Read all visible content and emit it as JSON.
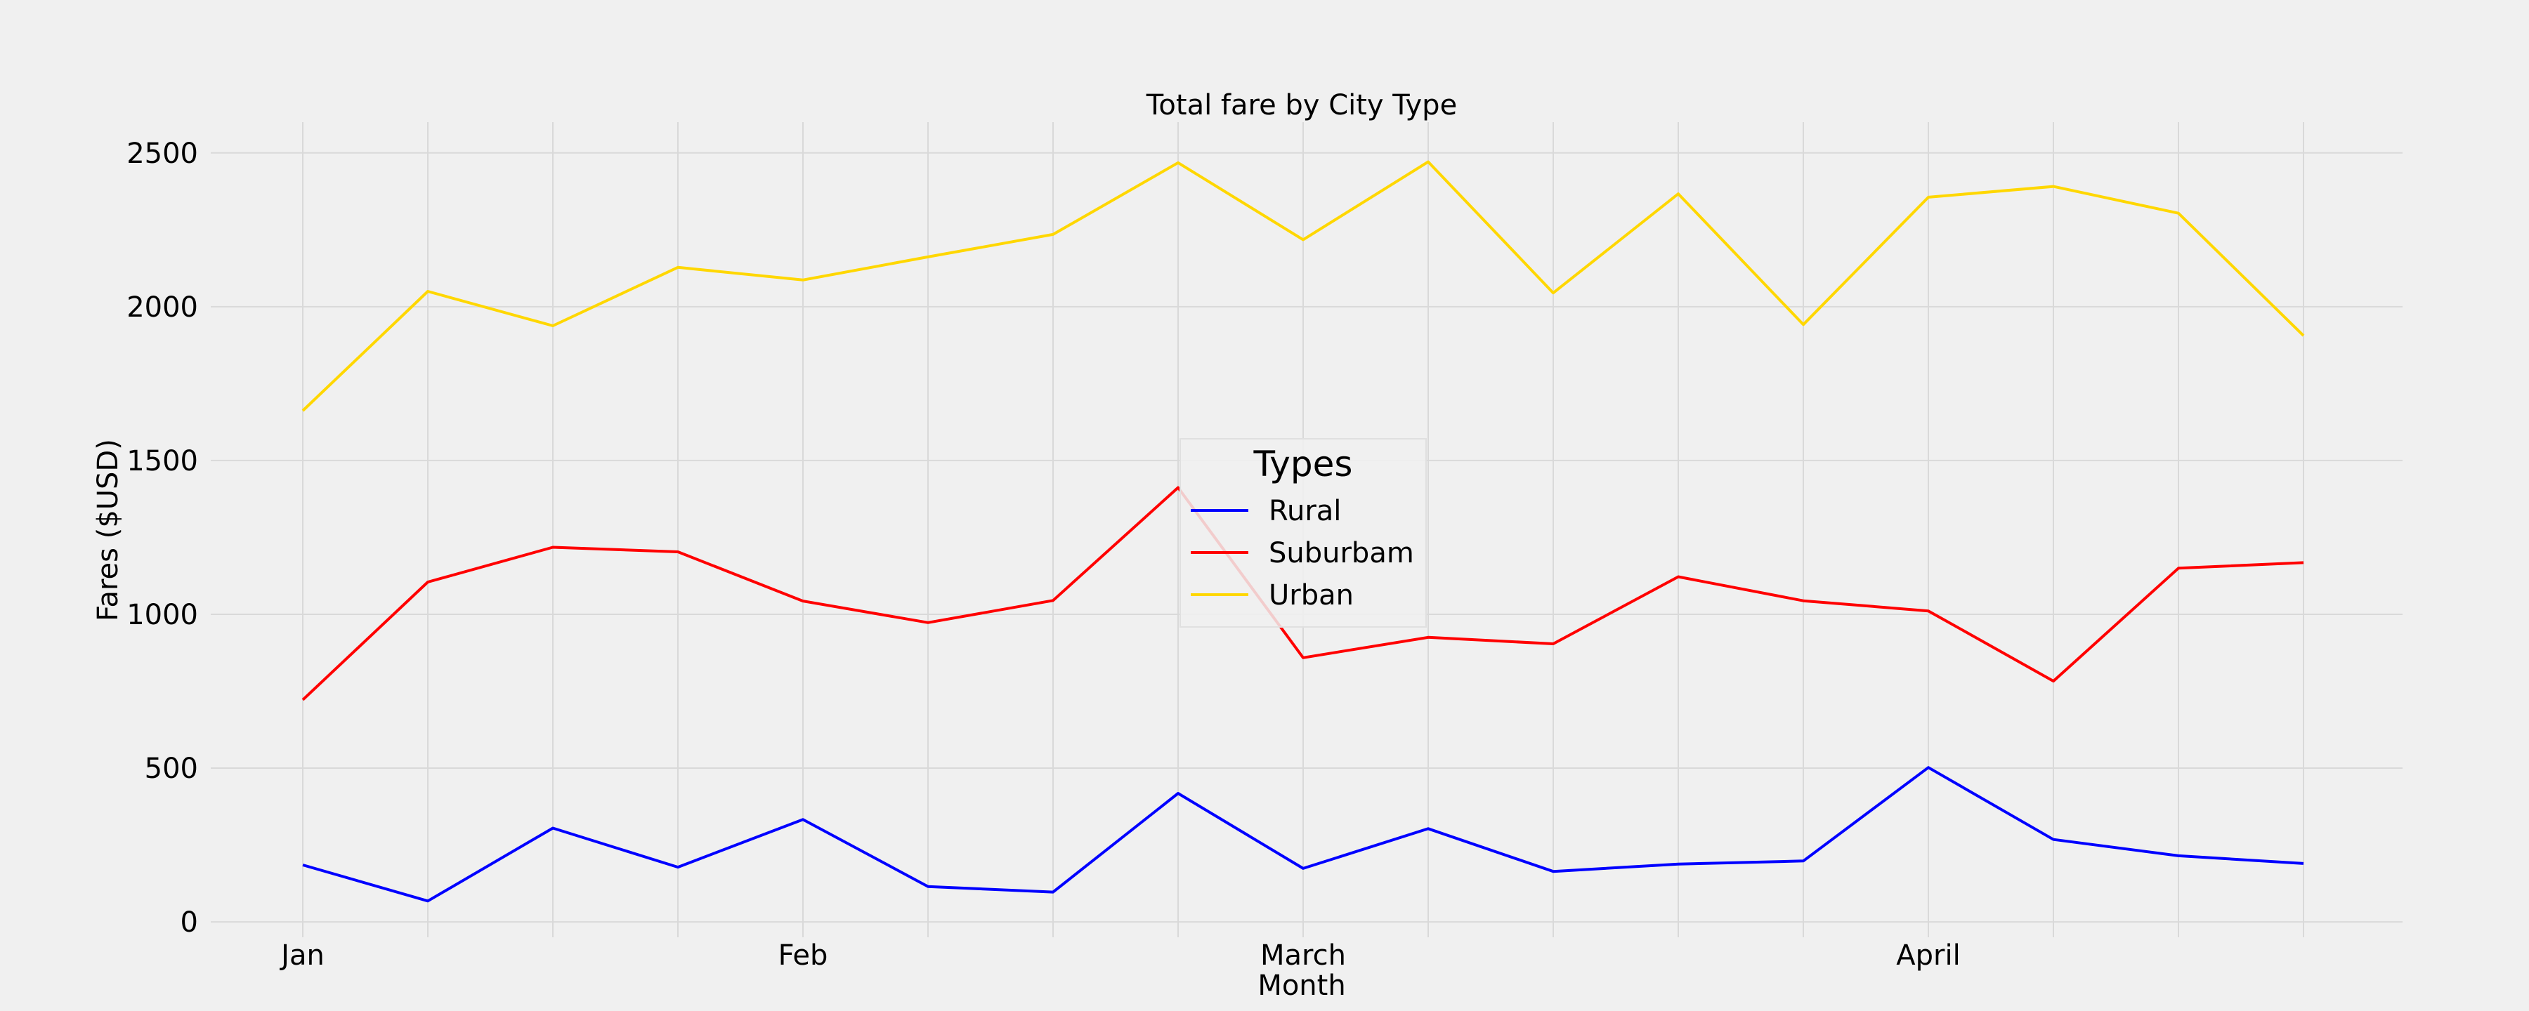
{
  "chart_data": {
    "type": "line",
    "title": "Total fare by City Type",
    "xlabel": "Month",
    "ylabel": "Fares ($USD)",
    "x_tick_labels": [
      {
        "index": 0,
        "label": "Jan"
      },
      {
        "index": 4,
        "label": "Feb"
      },
      {
        "index": 8,
        "label": "March"
      },
      {
        "index": 13,
        "label": "April"
      }
    ],
    "point_count": 17,
    "ylim": [
      -50,
      2600
    ],
    "yticks": [
      0,
      500,
      1000,
      1500,
      2000,
      2500
    ],
    "grid": true,
    "legend": {
      "title": "Types",
      "placement": "center"
    },
    "series": [
      {
        "name": "Rural",
        "color": "#0000ff",
        "values": [
          185,
          68,
          305,
          178,
          333,
          115,
          97,
          418,
          174,
          303,
          164,
          188,
          198,
          502,
          268,
          215,
          190
        ]
      },
      {
        "name": "Suburbam",
        "color": "#ff0000",
        "values": [
          722,
          1105,
          1218,
          1203,
          1043,
          973,
          1045,
          1412,
          859,
          925,
          904,
          1122,
          1044,
          1011,
          783,
          1150,
          1168
        ]
      },
      {
        "name": "Urban",
        "color": "#ffd700",
        "values": [
          1662,
          2050,
          1938,
          2128,
          2087,
          2162,
          2235,
          2468,
          2218,
          2471,
          2045,
          2367,
          1942,
          2356,
          2391,
          2304,
          1906
        ]
      }
    ]
  }
}
